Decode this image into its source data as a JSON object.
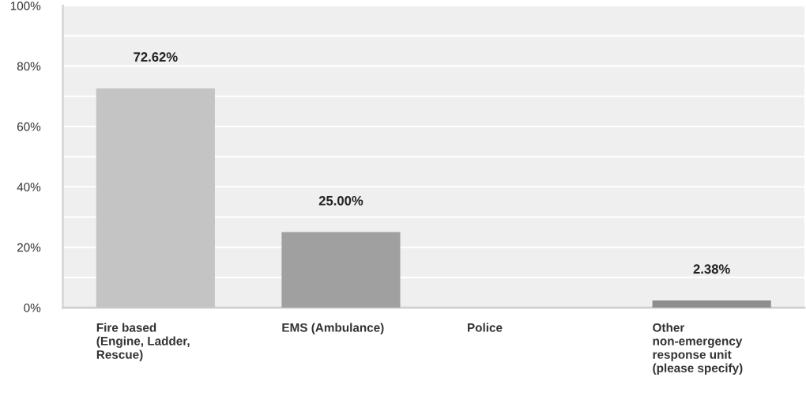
{
  "chart_data": {
    "type": "bar",
    "categories": [
      "Fire based\n(Engine, Ladder,\nRescue)",
      "EMS (Ambulance)",
      "Police",
      "Other\nnon-emergency\nresponse unit\n(please specify)"
    ],
    "values": [
      72.62,
      25.0,
      0,
      2.38
    ],
    "colors": [
      "#c4c4c4",
      "#a0a0a0",
      "#9c9c9c",
      "#8e8e8e"
    ],
    "value_labels": [
      "72.62%",
      "25.00%",
      null,
      "2.38%"
    ],
    "ylim": [
      0,
      100
    ],
    "yticks": [
      {
        "value": 0,
        "label": "0%"
      },
      {
        "value": 10,
        "label": null
      },
      {
        "value": 20,
        "label": "20%"
      },
      {
        "value": 30,
        "label": null
      },
      {
        "value": 40,
        "label": "40%"
      },
      {
        "value": 50,
        "label": null
      },
      {
        "value": 60,
        "label": "60%"
      },
      {
        "value": 70,
        "label": null
      },
      {
        "value": 80,
        "label": "80%"
      },
      {
        "value": 90,
        "label": null
      },
      {
        "value": 100,
        "label": "100%"
      }
    ],
    "grid": "y"
  }
}
